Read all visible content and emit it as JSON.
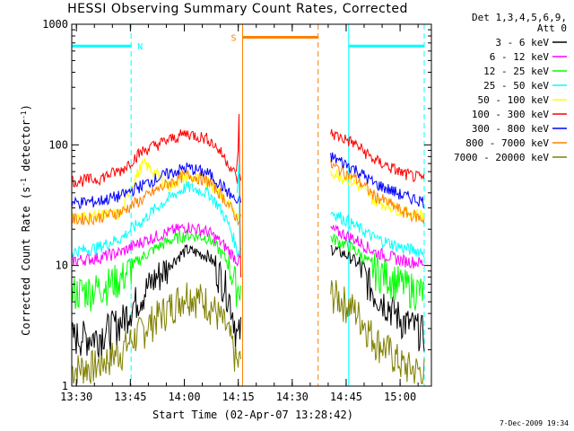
{
  "chart_data": {
    "type": "line",
    "title": "HESSI Observing Summary Count Rates, Corrected",
    "xlabel": "Start Time (02-Apr-07 13:28:42)",
    "ylabel": "Corrected Count Rate (s⁻¹ detector⁻¹)",
    "x_ticks": [
      "13:30",
      "13:45",
      "14:00",
      "14:15",
      "14:30",
      "14:45",
      "15:00"
    ],
    "y_ticks": [
      "1",
      "10",
      "100",
      "1000"
    ],
    "yscale": "log",
    "ylim": [
      1,
      1000
    ],
    "xlim": [
      "13:28:42",
      "15:08:42"
    ],
    "legend_header": [
      "Det 1,3,4,5,6,9,",
      "Att 0"
    ],
    "legend_position": "right",
    "series": [
      {
        "name": "3 - 6 keV",
        "color": "#000000",
        "values": [
          2.6,
          2.6,
          3.5,
          6.0,
          10.0,
          13.5,
          12.0,
          6.5,
          2.5,
          14.0,
          11.5,
          6.0,
          3.5,
          2.8
        ]
      },
      {
        "name": "6 - 12 keV",
        "color": "#ff00ff",
        "values": [
          11.0,
          11.5,
          13.0,
          16.0,
          19.0,
          21.0,
          19.0,
          14.0,
          11.0,
          20.0,
          17.0,
          13.0,
          11.0,
          10.5
        ]
      },
      {
        "name": "12 - 25 keV",
        "color": "#00ff00",
        "values": [
          6.0,
          6.5,
          8.0,
          12.0,
          16.0,
          18.0,
          17.0,
          11.0,
          6.5,
          17.0,
          14.0,
          9.5,
          7.0,
          6.0
        ]
      },
      {
        "name": "25 - 50 keV",
        "color": "#00ffff",
        "values": [
          13.0,
          14.0,
          17.0,
          24.0,
          36.0,
          45.0,
          40.0,
          24.0,
          13.0,
          28.0,
          22.0,
          17.0,
          14.0,
          13.0
        ]
      },
      {
        "name": "50 - 100 keV",
        "color": "#ffff00",
        "values": [
          25.0,
          26.0,
          27.0,
          70.0,
          45.0,
          55.0,
          50.0,
          35.0,
          25.0,
          60.0,
          50.0,
          35.0,
          28.0,
          26.0
        ]
      },
      {
        "name": "100 - 300 keV",
        "color": "#ff0000",
        "values": [
          50.0,
          52.0,
          62.0,
          90.0,
          110.0,
          125.0,
          112.0,
          75.0,
          52.0,
          125.0,
          105.0,
          75.0,
          58.0,
          52.0
        ]
      },
      {
        "name": "300 - 800 keV",
        "color": "#0000ff",
        "values": [
          33.0,
          34.0,
          38.0,
          47.0,
          58.0,
          65.0,
          58.0,
          42.0,
          33.0,
          80.0,
          65.0,
          48.0,
          38.0,
          34.0
        ]
      },
      {
        "name": "800 - 7000 keV",
        "color": "#ff8000",
        "values": [
          24.0,
          25.0,
          28.0,
          36.0,
          48.0,
          57.0,
          50.0,
          34.0,
          24.0,
          68.0,
          55.0,
          38.0,
          28.0,
          24.0
        ]
      },
      {
        "name": "7000 - 20000 keV",
        "color": "#808000",
        "values": [
          1.4,
          1.5,
          2.0,
          3.0,
          4.5,
          6.0,
          5.0,
          3.0,
          1.5,
          6.0,
          4.5,
          2.5,
          1.5,
          1.3
        ]
      }
    ],
    "x_minutes": [
      0,
      7,
      14,
      20,
      27,
      32,
      38,
      43,
      46,
      72,
      78,
      84,
      92,
      98
    ],
    "gap_minutes": [
      47,
      72
    ],
    "flare_spike": {
      "minute": 46.5,
      "peak": 180
    },
    "markers": [
      {
        "label": "N",
        "color": "#00ffff",
        "segments": [
          [
            0,
            16.5
          ],
          [
            77,
            98
          ]
        ],
        "level": 660
      },
      {
        "label": "S",
        "color": "#ff8000",
        "segments": [
          [
            47.5,
            68.5
          ]
        ],
        "level": 780
      }
    ],
    "footer": "7-Dec-2009 19:34"
  }
}
